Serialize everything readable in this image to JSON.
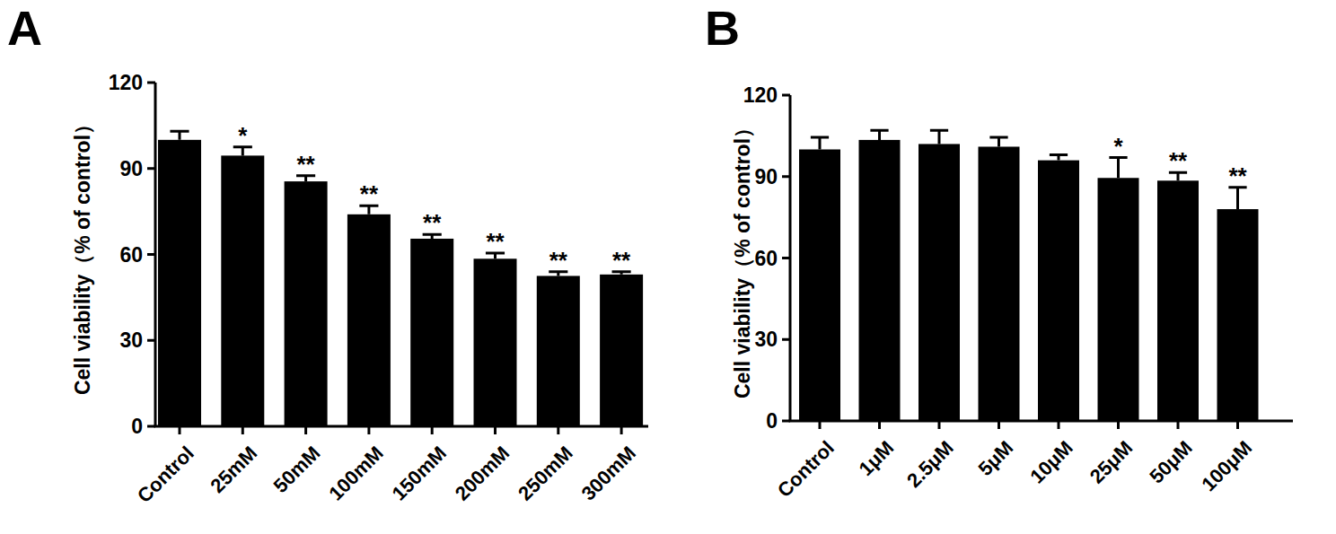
{
  "chart_data": [
    {
      "type": "bar",
      "title": "A",
      "y_label": "Cell viability（% of control）",
      "categories": [
        "Control",
        "25mM",
        "50mM",
        "100mM",
        "150mM",
        "200mM",
        "250mM",
        "300mM"
      ],
      "values": [
        100,
        94.5,
        85.5,
        74,
        65.5,
        58.5,
        52.5,
        53
      ],
      "errors": [
        3,
        3,
        2,
        3,
        1.5,
        2,
        1.5,
        1
      ],
      "annotations": [
        null,
        "*",
        "**",
        "**",
        "**",
        "**",
        "**",
        "**"
      ],
      "color": "#000000",
      "ylim": [
        0,
        120
      ],
      "yticks": [
        0,
        30,
        60,
        90,
        120
      ],
      "grid": false
    },
    {
      "type": "bar",
      "title": "B",
      "y_label": "Cell viability（% of control）",
      "categories": [
        "Control",
        "1μM",
        "2.5μM",
        "5μM",
        "10μM",
        "25μM",
        "50μM",
        "100μM"
      ],
      "values": [
        100,
        103.5,
        102,
        101,
        96,
        89.5,
        88.5,
        78
      ],
      "errors": [
        4.5,
        3.5,
        5,
        3.5,
        2,
        7.5,
        3,
        8
      ],
      "annotations": [
        null,
        null,
        null,
        null,
        null,
        "*",
        "**",
        "**"
      ],
      "color": "#000000",
      "ylim": [
        0,
        120
      ],
      "yticks": [
        0,
        30,
        60,
        90,
        120
      ],
      "grid": false
    }
  ]
}
